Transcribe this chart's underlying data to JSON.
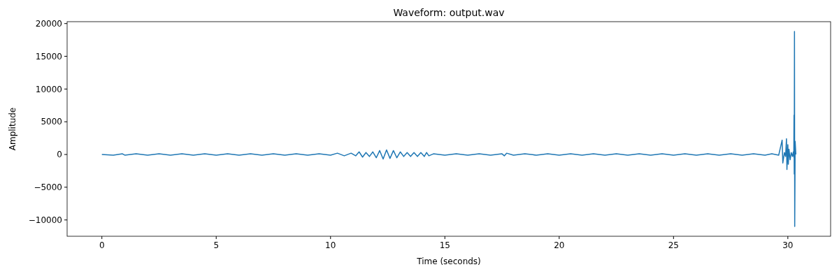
{
  "chart_data": {
    "type": "line",
    "title": "Waveform: output.wav",
    "xlabel": "Time (seconds)",
    "ylabel": "Amplitude",
    "xlim": [
      -1.52,
      31.87
    ],
    "ylim": [
      -12490,
      20290
    ],
    "xticks": [
      0,
      5,
      10,
      15,
      20,
      25,
      30
    ],
    "yticks": [
      -10000,
      -5000,
      0,
      5000,
      10000,
      15000,
      20000
    ],
    "grid": false,
    "series": [
      {
        "color": "#1f77b4",
        "x": [
          0,
          0.5,
          0.9,
          1.0,
          1.5,
          2,
          2.5,
          3,
          3.5,
          4,
          4.5,
          5,
          5.5,
          6,
          6.5,
          7,
          7.5,
          8,
          8.5,
          9,
          9.5,
          10.0,
          10.3,
          10.6,
          10.9,
          11.1,
          11.25,
          11.4,
          11.55,
          11.7,
          11.85,
          12.0,
          12.15,
          12.3,
          12.45,
          12.6,
          12.75,
          12.9,
          13.05,
          13.2,
          13.35,
          13.5,
          13.65,
          13.8,
          13.95,
          14.1,
          14.2,
          14.3,
          14.5,
          15,
          15.5,
          16,
          16.5,
          17,
          17.5,
          17.6,
          17.7,
          18,
          18.5,
          19,
          19.5,
          20,
          20.5,
          21,
          21.5,
          22,
          22.5,
          23,
          23.5,
          24,
          24.5,
          25,
          25.5,
          26,
          26.5,
          27,
          27.5,
          28,
          28.5,
          29,
          29.3,
          29.6,
          29.75,
          29.78,
          29.85,
          29.9,
          29.94,
          29.96,
          30.0,
          30.02,
          30.05,
          30.1,
          30.15,
          30.2,
          30.24,
          30.26,
          30.27,
          30.28,
          30.29,
          30.3,
          30.32,
          30.35
        ],
        "values": [
          0,
          -100,
          100,
          -100,
          100,
          -100,
          100,
          -100,
          100,
          -100,
          100,
          -100,
          100,
          -100,
          100,
          -100,
          100,
          -100,
          100,
          -100,
          100,
          -100,
          200,
          -200,
          200,
          -200,
          400,
          -400,
          300,
          -300,
          400,
          -500,
          600,
          -700,
          700,
          -600,
          600,
          -500,
          400,
          -300,
          300,
          -300,
          300,
          -300,
          300,
          -300,
          300,
          -200,
          100,
          -100,
          100,
          -100,
          100,
          -100,
          100,
          -200,
          200,
          -100,
          100,
          -100,
          100,
          -100,
          100,
          -100,
          100,
          -100,
          100,
          -100,
          100,
          -100,
          100,
          -100,
          100,
          -100,
          100,
          -100,
          100,
          -100,
          100,
          -100,
          100,
          -100,
          2200,
          -1300,
          300,
          -300,
          2400,
          -2300,
          1500,
          -1500,
          800,
          -800,
          300,
          -300,
          400,
          -400,
          6000,
          -3000,
          18800,
          -11000,
          2000,
          0
        ]
      }
    ]
  }
}
